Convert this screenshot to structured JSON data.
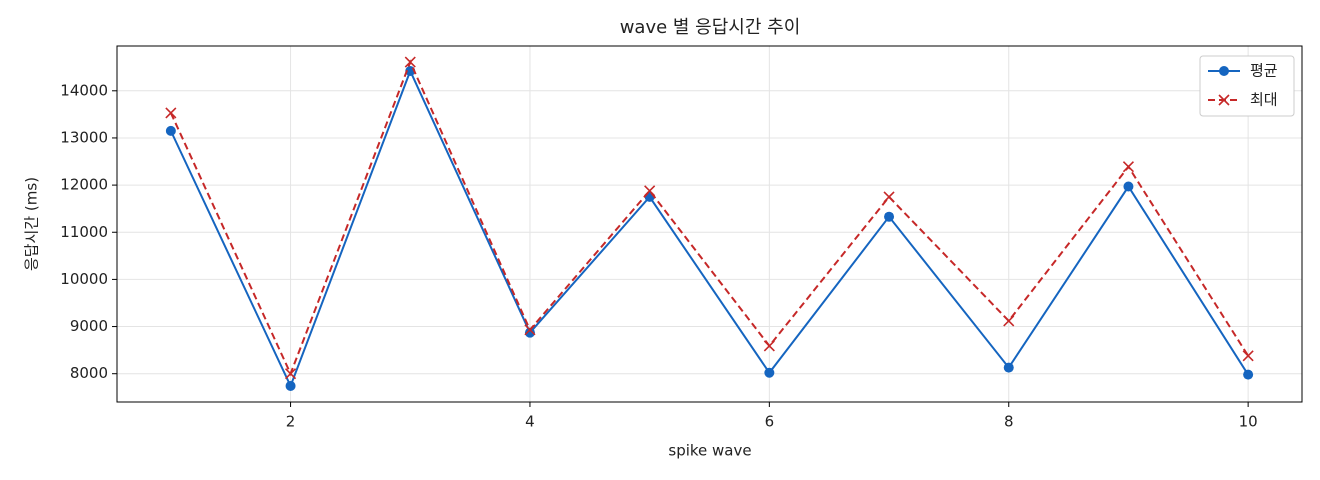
{
  "chart_data": {
    "type": "line",
    "title": "wave 별 응답시간 추이",
    "x_label": "spike wave",
    "y_label": "응답시간 (ms)",
    "x": [
      1,
      2,
      3,
      4,
      5,
      6,
      7,
      8,
      9,
      10
    ],
    "series": [
      {
        "name": "평균",
        "color": "#1565c0",
        "linestyle": "solid",
        "marker": "circle",
        "values": [
          13150,
          7740,
          14420,
          8870,
          11750,
          8020,
          11330,
          8130,
          11970,
          7980
        ]
      },
      {
        "name": "최대",
        "color": "#c62828",
        "linestyle": "dashed",
        "marker": "x",
        "values": [
          13530,
          8000,
          14610,
          8930,
          11880,
          8590,
          11750,
          9120,
          12390,
          8380
        ]
      }
    ],
    "xlim": [
      0.55,
      10.45
    ],
    "ylim": [
      7400,
      14950
    ],
    "xticks": [
      2,
      4,
      6,
      8,
      10
    ],
    "yticks": [
      8000,
      9000,
      10000,
      11000,
      12000,
      13000,
      14000
    ],
    "grid": true,
    "legend": "upper right"
  }
}
